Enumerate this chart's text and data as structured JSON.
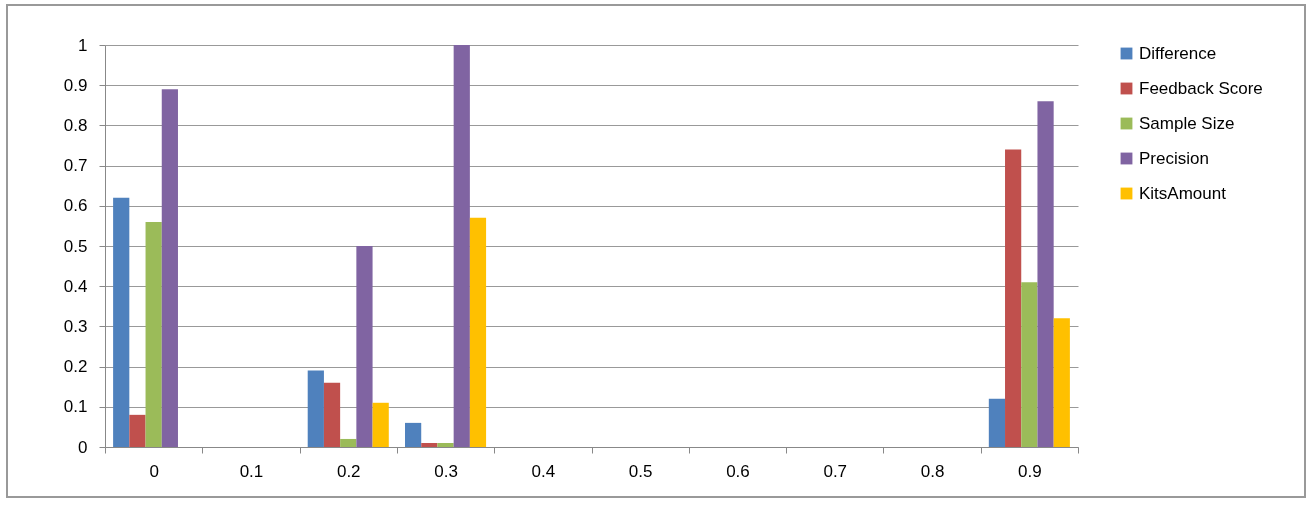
{
  "chart_data": {
    "type": "bar",
    "categories": [
      "0",
      "0.1",
      "0.2",
      "0.3",
      "0.4",
      "0.5",
      "0.6",
      "0.7",
      "0.8",
      "0.9"
    ],
    "series": [
      {
        "name": "Difference",
        "color": "#4f81bd",
        "values": [
          0.62,
          0,
          0.19,
          0.06,
          0,
          0,
          0,
          0,
          0,
          0.12
        ]
      },
      {
        "name": "Feedback Score",
        "color": "#c0504d",
        "values": [
          0.08,
          0,
          0.16,
          0.01,
          0,
          0,
          0,
          0,
          0,
          0.74
        ]
      },
      {
        "name": "Sample Size",
        "color": "#9bbb59",
        "values": [
          0.56,
          0,
          0.02,
          0.01,
          0,
          0,
          0,
          0,
          0,
          0.41
        ]
      },
      {
        "name": "Precision",
        "color": "#8064a2",
        "values": [
          0.89,
          0,
          0.5,
          1,
          0,
          0,
          0,
          0,
          0,
          0.86
        ]
      },
      {
        "name": "KitsAmount",
        "color": "#ffc000",
        "values": [
          0,
          0,
          0.11,
          0.57,
          0,
          0,
          0,
          0,
          0,
          0.32
        ]
      }
    ],
    "ylim": [
      0,
      1
    ],
    "yticks": [
      0,
      0.1,
      0.2,
      0.3,
      0.4,
      0.5,
      0.6,
      0.7,
      0.8,
      0.9,
      1
    ],
    "grid": "y",
    "legend": "right"
  }
}
